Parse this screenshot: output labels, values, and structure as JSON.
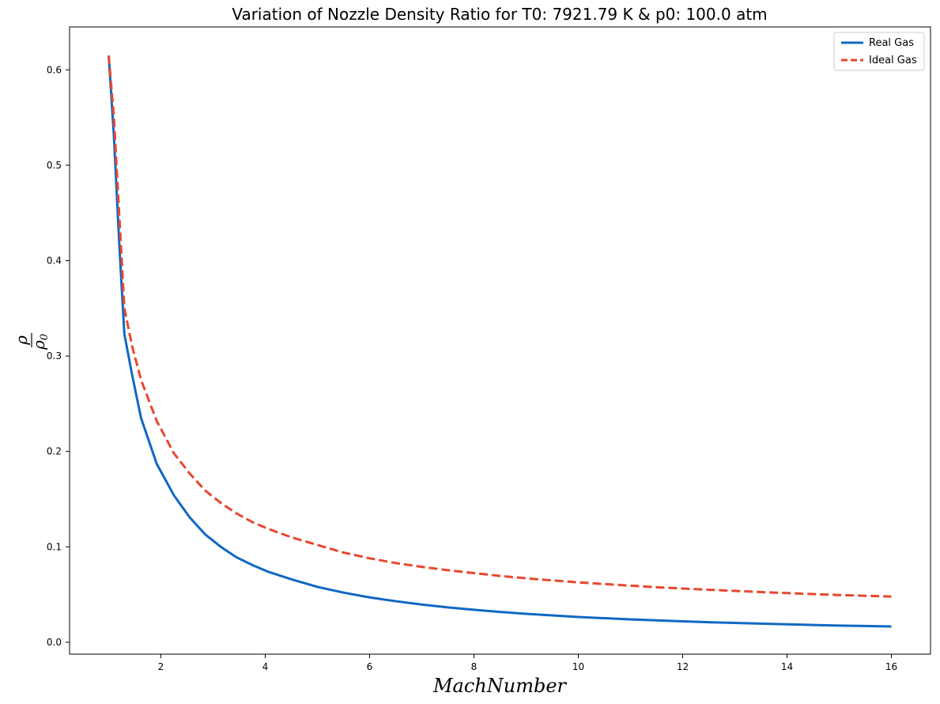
{
  "chart_data": {
    "type": "line",
    "title": "Variation of Nozzle Density Ratio for T0: 7921.79 K & p0: 100.0 atm",
    "xlabel": "MachNumber",
    "ylabel_num": "ρ",
    "ylabel_den": "ρ",
    "ylabel_sub": "0",
    "xlim": [
      0.25,
      16.75
    ],
    "ylim": [
      -0.0125,
      0.645
    ],
    "xticks": [
      2,
      4,
      6,
      8,
      10,
      12,
      14,
      16
    ],
    "yticks": [
      0.0,
      0.1,
      0.2,
      0.3,
      0.4,
      0.5,
      0.6
    ],
    "ytick_labels": [
      "0.0",
      "0.1",
      "0.2",
      "0.3",
      "0.4",
      "0.5",
      "0.6"
    ],
    "legend_position": "top-right",
    "series": [
      {
        "name": "Real Gas",
        "color": "#1068c4",
        "dash": "solid",
        "x": [
          1.0,
          1.1,
          1.2,
          1.3,
          1.45,
          1.62,
          1.92,
          2.25,
          2.55,
          2.85,
          3.15,
          3.45,
          3.75,
          4.05,
          4.5,
          5.0,
          5.5,
          6.0,
          6.5,
          7.0,
          7.5,
          8.0,
          8.5,
          9.0,
          9.5,
          10.0,
          10.5,
          11.0,
          11.5,
          12.0,
          12.5,
          13.0,
          13.5,
          14.0,
          14.5,
          15.0,
          15.5,
          16.0
        ],
        "y": [
          0.615,
          0.53,
          0.42,
          0.323,
          0.28,
          0.235,
          0.187,
          0.154,
          0.131,
          0.113,
          0.1,
          0.089,
          0.081,
          0.074,
          0.066,
          0.058,
          0.052,
          0.047,
          0.043,
          0.0395,
          0.0365,
          0.034,
          0.0318,
          0.0298,
          0.0281,
          0.0265,
          0.0252,
          0.024,
          0.0229,
          0.0219,
          0.021,
          0.0202,
          0.0195,
          0.0188,
          0.0181,
          0.0175,
          0.017,
          0.0165
        ]
      },
      {
        "name": "Ideal Gas",
        "color": "#e8472e",
        "dash": "dashed",
        "x": [
          1.0,
          1.1,
          1.2,
          1.3,
          1.45,
          1.62,
          1.92,
          2.25,
          2.55,
          2.85,
          3.15,
          3.45,
          3.75,
          4.05,
          4.5,
          5.0,
          5.5,
          6.0,
          6.5,
          7.0,
          7.5,
          8.0,
          8.5,
          9.0,
          9.5,
          10.0,
          10.5,
          11.0,
          11.5,
          12.0,
          12.5,
          13.0,
          13.5,
          14.0,
          14.5,
          15.0,
          15.5,
          16.0
        ],
        "y": [
          0.615,
          0.55,
          0.45,
          0.35,
          0.31,
          0.275,
          0.232,
          0.198,
          0.177,
          0.159,
          0.146,
          0.135,
          0.126,
          0.119,
          0.11,
          0.102,
          0.094,
          0.088,
          0.083,
          0.079,
          0.0755,
          0.0725,
          0.0695,
          0.067,
          0.0648,
          0.0628,
          0.061,
          0.0593,
          0.0577,
          0.0563,
          0.055,
          0.0538,
          0.0526,
          0.0515,
          0.0505,
          0.0495,
          0.0487,
          0.0479
        ]
      }
    ]
  }
}
